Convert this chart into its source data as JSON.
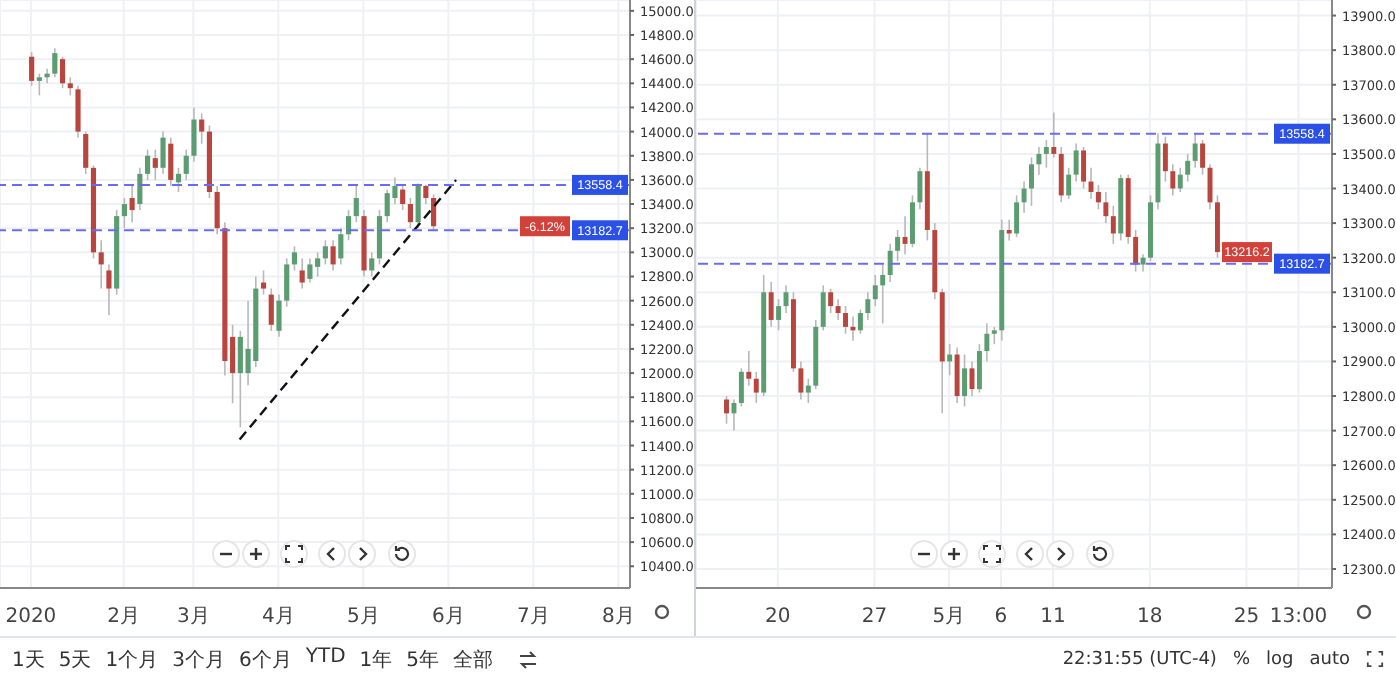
{
  "chart_data": [
    {
      "type": "candlestick",
      "categories": [
        "2020",
        null,
        null,
        null,
        null,
        null,
        null,
        null,
        null,
        null,
        null,
        null,
        "2月",
        null,
        null,
        null,
        null,
        null,
        null,
        null,
        null,
        "3月",
        null,
        null,
        null,
        null,
        null,
        null,
        null,
        null,
        null,
        null,
        "4月",
        null,
        null,
        null,
        null,
        null,
        null,
        null,
        null,
        null,
        null,
        "5月",
        null,
        null,
        null,
        null,
        null,
        null,
        null,
        null,
        null,
        null,
        "6月",
        null,
        null,
        null,
        null,
        null,
        null,
        null,
        null,
        null,
        null,
        "7月",
        null,
        null,
        null,
        null,
        null,
        null,
        null,
        null,
        null,
        null,
        "8月",
        null
      ],
      "ohlc": [
        [
          14620,
          14660,
          14380,
          14420
        ],
        [
          14420,
          14480,
          14300,
          14450
        ],
        [
          14450,
          14520,
          14400,
          14480
        ],
        [
          14480,
          14690,
          14450,
          14650
        ],
        [
          14600,
          14620,
          14360,
          14400
        ],
        [
          14400,
          14450,
          14300,
          14360
        ],
        [
          14350,
          14380,
          13950,
          14000
        ],
        [
          13980,
          14000,
          13650,
          13700
        ],
        [
          13700,
          13720,
          12950,
          13000
        ],
        [
          13000,
          13100,
          12700,
          12900
        ],
        [
          12850,
          12900,
          12480,
          12700
        ],
        [
          12700,
          13350,
          12650,
          13300
        ],
        [
          13300,
          13450,
          13200,
          13400
        ],
        [
          13450,
          13550,
          13250,
          13350
        ],
        [
          13400,
          13700,
          13350,
          13650
        ],
        [
          13650,
          13850,
          13600,
          13800
        ],
        [
          13780,
          13850,
          13600,
          13700
        ],
        [
          13700,
          14000,
          13650,
          13950
        ],
        [
          13900,
          13950,
          13550,
          13600
        ],
        [
          13580,
          13700,
          13500,
          13650
        ],
        [
          13650,
          13850,
          13600,
          13800
        ],
        [
          13800,
          14200,
          13750,
          14100
        ],
        [
          14100,
          14150,
          13900,
          14000
        ],
        [
          14000,
          14050,
          13450,
          13500
        ],
        [
          13500,
          13550,
          13150,
          13200
        ],
        [
          13200,
          13250,
          11980,
          12100
        ],
        [
          12300,
          12400,
          11750,
          12000
        ],
        [
          12000,
          12350,
          11550,
          12300
        ],
        [
          12000,
          12600,
          11900,
          12200
        ],
        [
          12100,
          12800,
          12050,
          12700
        ],
        [
          12750,
          12850,
          12650,
          12700
        ],
        [
          12650,
          12700,
          12350,
          12400
        ],
        [
          12350,
          12650,
          12300,
          12600
        ],
        [
          12600,
          12950,
          12550,
          12900
        ],
        [
          12900,
          13050,
          12850,
          13000
        ],
        [
          12850,
          12950,
          12700,
          12750
        ],
        [
          12780,
          12950,
          12750,
          12900
        ],
        [
          12880,
          13000,
          12800,
          12950
        ],
        [
          12950,
          13100,
          12900,
          13050
        ],
        [
          13050,
          13100,
          12850,
          12900
        ],
        [
          12950,
          13200,
          12900,
          13150
        ],
        [
          13150,
          13350,
          13100,
          13300
        ],
        [
          13300,
          13560,
          13250,
          13450
        ],
        [
          13300,
          13350,
          12800,
          12850
        ],
        [
          12850,
          13000,
          12800,
          12950
        ],
        [
          12950,
          13350,
          12900,
          13300
        ],
        [
          13300,
          13520,
          13250,
          13490
        ],
        [
          13450,
          13620,
          13400,
          13550
        ],
        [
          13520,
          13560,
          13350,
          13400
        ],
        [
          13400,
          13450,
          13200,
          13250
        ],
        [
          13250,
          13570,
          13200,
          13550
        ],
        [
          13550,
          13560,
          13400,
          13450
        ],
        [
          13450,
          13480,
          13180,
          13216.2
        ],
        null,
        null,
        null,
        null,
        null,
        null,
        null,
        null,
        null,
        null,
        null,
        null,
        null,
        null,
        null,
        null,
        null,
        null,
        null,
        null,
        null,
        null,
        null,
        null,
        null
      ],
      "colors": [
        "#b8463e",
        "#5b9d70",
        "#5b9d70",
        "#5b9d70",
        "#b8463e",
        "#b8463e",
        "#b8463e",
        "#b8463e",
        "#b8463e",
        "#b8463e",
        "#b8463e",
        "#5b9d70",
        "#5b9d70",
        "#b8463e",
        "#5b9d70",
        "#5b9d70",
        "#b8463e",
        "#5b9d70",
        "#b8463e",
        "#5b9d70",
        "#5b9d70",
        "#5b9d70",
        "#b8463e",
        "#b8463e",
        "#b8463e",
        "#b8463e",
        "#b8463e",
        "#5b9d70",
        "#5b9d70",
        "#5b9d70",
        "#b8463e",
        "#b8463e",
        "#5b9d70",
        "#5b9d70",
        "#5b9d70",
        "#b8463e",
        "#5b9d70",
        "#5b9d70",
        "#5b9d70",
        "#b8463e",
        "#5b9d70",
        "#5b9d70",
        "#5b9d70",
        "#b8463e",
        "#5b9d70",
        "#5b9d70",
        "#5b9d70",
        "#5b9d70",
        "#b8463e",
        "#b8463e",
        "#5b9d70",
        "#b8463e",
        "#b8463e",
        null,
        null,
        null,
        null,
        null,
        null,
        null,
        null,
        null,
        null,
        null,
        null,
        null,
        null,
        null,
        null,
        null,
        null,
        null,
        null,
        null,
        null,
        null,
        null,
        null
      ],
      "series": [
        {
          "type": "line",
          "color": "#111111",
          "line_style": "dashed",
          "values": [
            null,
            null,
            null,
            null,
            null,
            null,
            null,
            null,
            null,
            null,
            null,
            null,
            null,
            null,
            null,
            null,
            null,
            null,
            null,
            null,
            null,
            null,
            null,
            null,
            null,
            null,
            null,
            11450,
            null,
            null,
            null,
            null,
            null,
            null,
            null,
            null,
            null,
            null,
            null,
            null,
            null,
            null,
            null,
            null,
            null,
            null,
            null,
            null,
            null,
            null,
            null,
            null,
            null,
            null,
            null,
            13600,
            null,
            null,
            null,
            null,
            null,
            null,
            null,
            null,
            null,
            null,
            null,
            null,
            null,
            null,
            null,
            null,
            null,
            null,
            null,
            null,
            null,
            null
          ]
        }
      ],
      "ylim": [
        10220,
        15090
      ],
      "yticks": [
        {
          "value": 10400,
          "label": "10400.0"
        },
        {
          "value": 10600,
          "label": "10600.0"
        },
        {
          "value": 10800,
          "label": "10800.0"
        },
        {
          "value": 11000,
          "label": "11000.0"
        },
        {
          "value": 11200,
          "label": "11200.0"
        },
        {
          "value": 11400,
          "label": "11400.0"
        },
        {
          "value": 11600,
          "label": "11600.0"
        },
        {
          "value": 11800,
          "label": "11800.0"
        },
        {
          "value": 12000,
          "label": "12000.0"
        },
        {
          "value": 12200,
          "label": "12200.0"
        },
        {
          "value": 12400,
          "label": "12400.0"
        },
        {
          "value": 12600,
          "label": "12600.0"
        },
        {
          "value": 12800,
          "label": "12800.0"
        },
        {
          "value": 13000,
          "label": "13000.0"
        },
        {
          "value": 13200,
          "label": "13200.0"
        },
        {
          "value": 13400,
          "label": "13400.0"
        },
        {
          "value": 13600,
          "label": "13600.0"
        },
        {
          "value": 13800,
          "label": "13800.0"
        },
        {
          "value": 14000,
          "label": "14000.0"
        },
        {
          "value": 14200,
          "label": "14200.0"
        },
        {
          "value": 14400,
          "label": "14400.0"
        },
        {
          "value": 14600,
          "label": "14600.0"
        },
        {
          "value": 14800,
          "label": "14800.0"
        },
        {
          "value": 15000,
          "label": "15000.0"
        }
      ],
      "grid": true,
      "ref_lines": [
        {
          "axis": "y",
          "value": 13558.4,
          "label": "13558.4",
          "color": "#6b6bf0",
          "line_style": "dashed"
        },
        {
          "axis": "y",
          "value": 13182.7,
          "label": "13182.7",
          "color": "#6b6bf0",
          "line_style": "dashed"
        }
      ],
      "annotations": [
        {
          "text": "-6.12%",
          "y": 13216.2
        },
        "1天",
        "5天",
        "1个月",
        "3个月",
        "6个月",
        "YTD",
        "1年",
        "5年",
        "全部"
      ]
    },
    {
      "type": "candlestick",
      "categories": [
        null,
        null,
        null,
        null,
        null,
        null,
        null,
        "20",
        null,
        null,
        null,
        null,
        null,
        null,
        null,
        null,
        null,
        null,
        null,
        null,
        "27",
        null,
        null,
        null,
        null,
        null,
        null,
        null,
        null,
        null,
        "5月",
        null,
        null,
        null,
        null,
        null,
        null,
        "6",
        null,
        null,
        null,
        null,
        null,
        null,
        "11",
        null,
        null,
        null,
        null,
        null,
        null,
        null,
        null,
        null,
        null,
        null,
        null,
        "18",
        null,
        null,
        null,
        null,
        null,
        null,
        null,
        null,
        null,
        null,
        null,
        null,
        "25",
        null,
        null,
        null,
        null,
        null,
        null,
        "13:00",
        null,
        null,
        null,
        null
      ],
      "ohlc": [
        [
          12790,
          12800,
          12720,
          12750
        ],
        [
          12750,
          12790,
          12700,
          12780
        ],
        [
          12780,
          12880,
          12770,
          12870
        ],
        [
          12870,
          12930,
          12830,
          12850
        ],
        [
          12850,
          12870,
          12780,
          12810
        ],
        [
          12810,
          13150,
          12800,
          13100
        ],
        [
          13100,
          13130,
          13000,
          13020
        ],
        [
          13020,
          13080,
          12990,
          13060
        ],
        [
          13060,
          13120,
          13040,
          13100
        ],
        [
          13080,
          13100,
          12870,
          12880
        ],
        [
          12880,
          12900,
          12790,
          12810
        ],
        [
          12810,
          12850,
          12780,
          12830
        ],
        [
          12830,
          13020,
          12820,
          13000
        ],
        [
          13000,
          13120,
          12990,
          13100
        ],
        [
          13100,
          13110,
          13040,
          13060
        ],
        [
          13060,
          13080,
          13020,
          13040
        ],
        [
          13040,
          13060,
          12980,
          13000
        ],
        [
          13000,
          13030,
          12960,
          12990
        ],
        [
          12990,
          13050,
          12980,
          13040
        ],
        [
          13040,
          13100,
          13020,
          13080
        ],
        [
          13080,
          13150,
          13060,
          13120
        ],
        [
          13120,
          13180,
          13010,
          13150
        ],
        [
          13150,
          13240,
          13130,
          13220
        ],
        [
          13220,
          13280,
          13190,
          13260
        ],
        [
          13260,
          13320,
          13210,
          13240
        ],
        [
          13240,
          13380,
          13230,
          13360
        ],
        [
          13360,
          13460,
          13340,
          13450
        ],
        [
          13450,
          13560,
          13250,
          13280
        ],
        [
          13280,
          13300,
          13080,
          13100
        ],
        [
          13100,
          13110,
          12750,
          12900
        ],
        [
          12900,
          12950,
          12860,
          12920
        ],
        [
          12920,
          12940,
          12780,
          12800
        ],
        [
          12800,
          12920,
          12770,
          12880
        ],
        [
          12880,
          12900,
          12800,
          12820
        ],
        [
          12820,
          12950,
          12810,
          12930
        ],
        [
          12930,
          13010,
          12900,
          12980
        ],
        [
          12980,
          13000,
          12950,
          12990
        ],
        [
          12990,
          13310,
          12960,
          13280
        ],
        [
          13280,
          13310,
          13250,
          13270
        ],
        [
          13270,
          13380,
          13260,
          13360
        ],
        [
          13360,
          13420,
          13330,
          13400
        ],
        [
          13400,
          13490,
          13350,
          13470
        ],
        [
          13470,
          13520,
          13440,
          13500
        ],
        [
          13500,
          13540,
          13460,
          13520
        ],
        [
          13520,
          13620,
          13490,
          13500
        ],
        [
          13500,
          13520,
          13360,
          13380
        ],
        [
          13380,
          13460,
          13370,
          13440
        ],
        [
          13440,
          13530,
          13420,
          13510
        ],
        [
          13510,
          13520,
          13400,
          13420
        ],
        [
          13420,
          13460,
          13370,
          13390
        ],
        [
          13390,
          13410,
          13340,
          13360
        ],
        [
          13360,
          13390,
          13300,
          13320
        ],
        [
          13320,
          13350,
          13240,
          13270
        ],
        [
          13270,
          13440,
          13250,
          13430
        ],
        [
          13430,
          13440,
          13240,
          13260
        ],
        [
          13260,
          13280,
          13160,
          13180
        ],
        [
          13180,
          13210,
          13160,
          13200
        ],
        [
          13200,
          13380,
          13190,
          13360
        ],
        [
          13360,
          13560,
          13340,
          13530
        ],
        [
          13530,
          13550,
          13420,
          13450
        ],
        [
          13450,
          13470,
          13380,
          13400
        ],
        [
          13400,
          13460,
          13390,
          13440
        ],
        [
          13440,
          13500,
          13420,
          13480
        ],
        [
          13480,
          13560,
          13460,
          13530
        ],
        [
          13530,
          13540,
          13440,
          13460
        ],
        [
          13460,
          13470,
          13340,
          13360
        ],
        [
          13360,
          13380,
          13200,
          13216.2
        ],
        null,
        null,
        null,
        null,
        null,
        null,
        null,
        null,
        null,
        null,
        null,
        null,
        null,
        null,
        null
      ],
      "colors": [
        "#b8463e",
        "#5b9d70",
        "#5b9d70",
        "#b8463e",
        "#b8463e",
        "#5b9d70",
        "#b8463e",
        "#5b9d70",
        "#5b9d70",
        "#b8463e",
        "#b8463e",
        "#5b9d70",
        "#5b9d70",
        "#5b9d70",
        "#b8463e",
        "#b8463e",
        "#b8463e",
        "#b8463e",
        "#5b9d70",
        "#5b9d70",
        "#5b9d70",
        "#5b9d70",
        "#5b9d70",
        "#5b9d70",
        "#b8463e",
        "#5b9d70",
        "#5b9d70",
        "#b8463e",
        "#b8463e",
        "#b8463e",
        "#5b9d70",
        "#b8463e",
        "#5b9d70",
        "#b8463e",
        "#5b9d70",
        "#5b9d70",
        "#5b9d70",
        "#5b9d70",
        "#b8463e",
        "#5b9d70",
        "#5b9d70",
        "#5b9d70",
        "#5b9d70",
        "#5b9d70",
        "#b8463e",
        "#b8463e",
        "#5b9d70",
        "#5b9d70",
        "#b8463e",
        "#b8463e",
        "#b8463e",
        "#b8463e",
        "#b8463e",
        "#5b9d70",
        "#b8463e",
        "#b8463e",
        "#5b9d70",
        "#5b9d70",
        "#5b9d70",
        "#b8463e",
        "#b8463e",
        "#5b9d70",
        "#5b9d70",
        "#5b9d70",
        "#b8463e",
        "#b8463e",
        "#b8463e",
        null,
        null,
        null,
        null,
        null,
        null,
        null,
        null,
        null,
        null,
        null,
        null,
        null,
        null,
        null
      ],
      "ylim": [
        12245,
        13945
      ],
      "yticks": [
        {
          "value": 12300,
          "label": "12300.0"
        },
        {
          "value": 12400,
          "label": "12400.0"
        },
        {
          "value": 12500,
          "label": "12500.0"
        },
        {
          "value": 12600,
          "label": "12600.0"
        },
        {
          "value": 12700,
          "label": "12700.0"
        },
        {
          "value": 12800,
          "label": "12800.0"
        },
        {
          "value": 12900,
          "label": "12900.0"
        },
        {
          "value": 13000,
          "label": "13000.0"
        },
        {
          "value": 13100,
          "label": "13100.0"
        },
        {
          "value": 13200,
          "label": "13200.0"
        },
        {
          "value": 13300,
          "label": "13300.0"
        },
        {
          "value": 13400,
          "label": "13400.0"
        },
        {
          "value": 13500,
          "label": "13500.0"
        },
        {
          "value": 13600,
          "label": "13600.0"
        },
        {
          "value": 13700,
          "label": "13700.0"
        },
        {
          "value": 13800,
          "label": "13800.0"
        },
        {
          "value": 13900,
          "label": "13900.0"
        }
      ],
      "grid": true,
      "ref_lines": [
        {
          "axis": "y",
          "value": 13558.4,
          "label": "13558.4",
          "color": "#6b6bf0",
          "line_style": "dashed"
        },
        {
          "axis": "y",
          "value": 13182.7,
          "label": "13182.7",
          "color": "#6b6bf0",
          "line_style": "dashed"
        }
      ],
      "annotations": [
        {
          "text": "13216.2",
          "y": 13216.2
        },
        "22:31:55 (UTC-4)",
        "%",
        "log",
        "auto"
      ]
    }
  ]
}
